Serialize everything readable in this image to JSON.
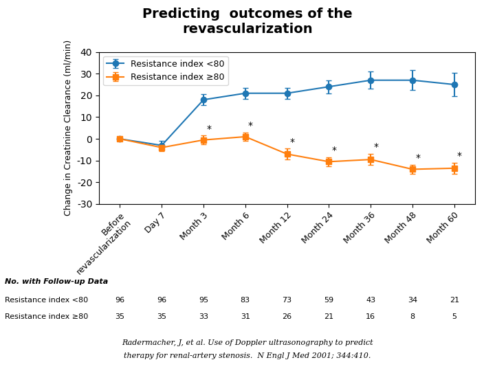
{
  "chart_data": {
    "type": "line",
    "title": "Predicting  outcomes of the\nrevascularization",
    "y_label": "Change in Creatinine Clearance (ml/min)",
    "categories": [
      "Before\nrevascularization",
      "Day 7",
      "Month 3",
      "Month 6",
      "Month 12",
      "Month 24",
      "Month 36",
      "Month 48",
      "Month 60"
    ],
    "series": [
      {
        "name": "Resistance index <80",
        "marker": "o",
        "line_style": "solid",
        "values": [
          0,
          -3,
          18,
          21,
          21,
          24,
          27,
          27,
          25
        ],
        "error": [
          1.0,
          2.0,
          2.5,
          2.5,
          2.5,
          3.0,
          4.0,
          4.5,
          5.5
        ]
      },
      {
        "name": "Resistance index ≥80",
        "marker": "s",
        "line_style": "solid",
        "values": [
          0,
          -4,
          -0.5,
          1,
          -7,
          -10.5,
          -9.5,
          -14,
          -13.5
        ],
        "error": [
          1.0,
          1.5,
          2.0,
          2.0,
          2.5,
          2.0,
          2.5,
          2.0,
          2.5
        ]
      }
    ],
    "ylim": [
      -30,
      40
    ],
    "yticks": [
      -30,
      -20,
      -10,
      0,
      10,
      20,
      30,
      40
    ],
    "grid": false,
    "legend": "upper left",
    "annotations": [
      {
        "series": "Resistance index ≥80",
        "category": "Month 3",
        "text": "*"
      },
      {
        "series": "Resistance index ≥80",
        "category": "Month 6",
        "text": "*"
      },
      {
        "series": "Resistance index ≥80",
        "category": "Month 12",
        "text": "*"
      },
      {
        "series": "Resistance index ≥80",
        "category": "Month 24",
        "text": "*"
      },
      {
        "series": "Resistance index ≥80",
        "category": "Month 36",
        "text": "*"
      },
      {
        "series": "Resistance index ≥80",
        "category": "Month 48",
        "text": "*"
      },
      {
        "series": "Resistance index ≥80",
        "category": "Month 60",
        "text": "*"
      }
    ],
    "table": {
      "title": "No. with Follow-up Data",
      "rows": [
        {
          "label": "Resistance index <80",
          "values": [
            96,
            96,
            95,
            83,
            73,
            59,
            43,
            34,
            21
          ]
        },
        {
          "label": "Resistance index ≥80",
          "values": [
            35,
            35,
            33,
            31,
            26,
            21,
            16,
            8,
            5
          ]
        }
      ]
    },
    "source": [
      "Radermacher, J, et al. Use of Doppler ultrasonography to predict",
      "therapy for renal-artery stenosis.",
      "N Engl J Med 2001; 344:410."
    ]
  }
}
